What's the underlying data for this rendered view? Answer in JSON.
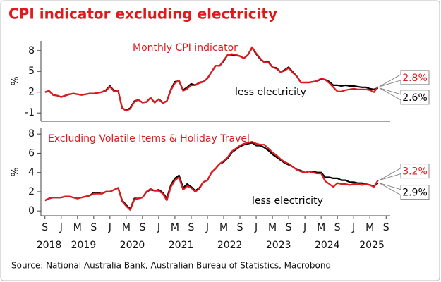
{
  "title": "CPI indicator excluding electricity",
  "source": "Source: National Australia Bank, Australian Bureau of Statistics, Macrobond",
  "chart_data": [
    {
      "type": "line",
      "x": [
        "2018-09",
        "2018-10",
        "2018-11",
        "2018-12",
        "2019-01",
        "2019-02",
        "2019-03",
        "2019-04",
        "2019-05",
        "2019-06",
        "2019-07",
        "2019-08",
        "2019-09",
        "2019-10",
        "2019-11",
        "2019-12",
        "2020-01",
        "2020-02",
        "2020-03",
        "2020-04",
        "2020-05",
        "2020-06",
        "2020-07",
        "2020-08",
        "2020-09",
        "2020-10",
        "2020-11",
        "2020-12",
        "2021-01",
        "2021-02",
        "2021-03",
        "2021-04",
        "2021-05",
        "2021-06",
        "2021-07",
        "2021-08",
        "2021-09",
        "2021-10",
        "2021-11",
        "2021-12",
        "2022-01",
        "2022-02",
        "2022-03",
        "2022-04",
        "2022-05",
        "2022-06",
        "2022-07",
        "2022-08",
        "2022-09",
        "2022-10",
        "2022-11",
        "2022-12",
        "2023-01",
        "2023-02",
        "2023-03",
        "2023-04",
        "2023-05",
        "2023-06",
        "2023-07",
        "2023-08",
        "2023-09",
        "2023-10",
        "2023-11",
        "2023-12",
        "2024-01",
        "2024-02",
        "2024-03",
        "2024-04",
        "2024-05",
        "2024-06",
        "2024-07",
        "2024-08",
        "2024-09",
        "2024-10",
        "2024-11",
        "2024-12",
        "2025-01",
        "2025-02",
        "2025-03",
        "2025-04",
        "2025-05",
        "2025-06",
        "2025-07"
      ],
      "xlim": [
        "2018-08",
        "2025-10"
      ],
      "ylabel": "%",
      "ylim": [
        -2.2,
        9.4
      ],
      "yticks": [
        -1,
        2,
        5,
        8
      ],
      "series": [
        {
          "name": "Monthly CPI indicator",
          "color": "#e0191e",
          "end_label": "2.8%",
          "values": [
            2.0,
            2.2,
            1.6,
            1.5,
            1.3,
            1.5,
            1.7,
            1.8,
            1.7,
            1.6,
            1.7,
            1.8,
            1.8,
            1.9,
            2.0,
            2.2,
            2.8,
            2.1,
            2.2,
            -0.3,
            -0.7,
            -0.4,
            0.6,
            0.9,
            0.5,
            0.6,
            1.2,
            0.5,
            1.0,
            0.4,
            0.7,
            2.3,
            3.3,
            3.7,
            2.2,
            2.5,
            3.0,
            3.0,
            3.3,
            3.5,
            4.0,
            4.9,
            5.8,
            5.8,
            6.6,
            7.4,
            7.5,
            7.4,
            7.2,
            6.9,
            7.4,
            8.5,
            7.6,
            6.9,
            6.3,
            6.3,
            5.6,
            5.4,
            4.9,
            5.1,
            5.5,
            4.8,
            4.3,
            3.4,
            3.4,
            3.4,
            3.5,
            3.6,
            4.0,
            3.8,
            3.3,
            2.7,
            2.1,
            2.1,
            2.3,
            2.4,
            2.5,
            2.4,
            2.4,
            2.4,
            2.3,
            2.0,
            2.8
          ]
        },
        {
          "name": "less electricity",
          "color": "#000000",
          "end_label": "2.6%",
          "values": [
            2.0,
            2.2,
            1.6,
            1.5,
            1.3,
            1.5,
            1.7,
            1.8,
            1.7,
            1.6,
            1.7,
            1.8,
            1.8,
            1.9,
            2.0,
            2.3,
            2.9,
            2.2,
            2.2,
            -0.3,
            -0.6,
            -0.3,
            0.7,
            0.9,
            0.5,
            0.6,
            1.2,
            0.5,
            1.0,
            0.5,
            0.7,
            2.4,
            3.5,
            3.6,
            2.3,
            2.7,
            3.2,
            3.0,
            3.4,
            3.5,
            4.0,
            4.9,
            5.8,
            5.8,
            6.5,
            7.4,
            7.4,
            7.3,
            7.2,
            6.9,
            7.4,
            8.4,
            7.5,
            6.8,
            6.3,
            6.4,
            5.6,
            5.5,
            4.9,
            5.2,
            5.6,
            4.9,
            4.3,
            3.4,
            3.4,
            3.4,
            3.5,
            3.6,
            3.9,
            3.8,
            3.5,
            3.0,
            3.0,
            2.9,
            3.0,
            2.9,
            2.9,
            2.8,
            2.7,
            2.7,
            2.5,
            2.4,
            2.6
          ]
        }
      ]
    },
    {
      "type": "line",
      "x": [
        "2018-09",
        "2018-10",
        "2018-11",
        "2018-12",
        "2019-01",
        "2019-02",
        "2019-03",
        "2019-04",
        "2019-05",
        "2019-06",
        "2019-07",
        "2019-08",
        "2019-09",
        "2019-10",
        "2019-11",
        "2019-12",
        "2020-01",
        "2020-02",
        "2020-03",
        "2020-04",
        "2020-05",
        "2020-06",
        "2020-07",
        "2020-08",
        "2020-09",
        "2020-10",
        "2020-11",
        "2020-12",
        "2021-01",
        "2021-02",
        "2021-03",
        "2021-04",
        "2021-05",
        "2021-06",
        "2021-07",
        "2021-08",
        "2021-09",
        "2021-10",
        "2021-11",
        "2021-12",
        "2022-01",
        "2022-02",
        "2022-03",
        "2022-04",
        "2022-05",
        "2022-06",
        "2022-07",
        "2022-08",
        "2022-09",
        "2022-10",
        "2022-11",
        "2022-12",
        "2023-01",
        "2023-02",
        "2023-03",
        "2023-04",
        "2023-05",
        "2023-06",
        "2023-07",
        "2023-08",
        "2023-09",
        "2023-10",
        "2023-11",
        "2023-12",
        "2024-01",
        "2024-02",
        "2024-03",
        "2024-04",
        "2024-05",
        "2024-06",
        "2024-07",
        "2024-08",
        "2024-09",
        "2024-10",
        "2024-11",
        "2024-12",
        "2025-01",
        "2025-02",
        "2025-03",
        "2025-04",
        "2025-05",
        "2025-06",
        "2025-07"
      ],
      "xlim": [
        "2018-08",
        "2025-10"
      ],
      "xticks": [
        {
          "value": "2018-09",
          "label": "S"
        },
        {
          "value": "2019-01",
          "label": "J"
        },
        {
          "value": "2019-05",
          "label": "M"
        },
        {
          "value": "2019-09",
          "label": "S"
        },
        {
          "value": "2020-01",
          "label": "J"
        },
        {
          "value": "2020-05",
          "label": "M"
        },
        {
          "value": "2020-09",
          "label": "S"
        },
        {
          "value": "2021-01",
          "label": "J"
        },
        {
          "value": "2021-05",
          "label": "M"
        },
        {
          "value": "2021-09",
          "label": "S"
        },
        {
          "value": "2022-01",
          "label": "J"
        },
        {
          "value": "2022-05",
          "label": "M"
        },
        {
          "value": "2022-09",
          "label": "S"
        },
        {
          "value": "2023-01",
          "label": "J"
        },
        {
          "value": "2023-05",
          "label": "M"
        },
        {
          "value": "2023-09",
          "label": "S"
        },
        {
          "value": "2024-01",
          "label": "J"
        },
        {
          "value": "2024-05",
          "label": "M"
        },
        {
          "value": "2024-09",
          "label": "S"
        },
        {
          "value": "2025-01",
          "label": "J"
        },
        {
          "value": "2025-05",
          "label": "M"
        },
        {
          "value": "2025-09",
          "label": "S"
        }
      ],
      "year_labels": [
        "2018",
        "2019",
        "2020",
        "2021",
        "2022",
        "2023",
        "2024",
        "2025"
      ],
      "ylabel": "%",
      "ylim": [
        -0.5,
        8.6
      ],
      "yticks": [
        0,
        2,
        4,
        6,
        8
      ],
      "series": [
        {
          "name": "Excluding Volatile Items & Holiday Travel",
          "color": "#e0191e",
          "end_label": "3.2%",
          "values": [
            1.1,
            1.3,
            1.4,
            1.4,
            1.4,
            1.5,
            1.5,
            1.4,
            1.3,
            1.4,
            1.5,
            1.6,
            1.8,
            1.8,
            1.8,
            2.0,
            2.0,
            2.2,
            2.4,
            1.0,
            0.5,
            0.1,
            1.2,
            1.3,
            1.4,
            2.0,
            2.3,
            2.1,
            2.1,
            1.8,
            1.1,
            2.5,
            3.2,
            3.5,
            2.2,
            2.6,
            2.4,
            2.0,
            2.3,
            3.0,
            3.2,
            4.0,
            4.4,
            4.9,
            5.2,
            5.6,
            6.2,
            6.5,
            6.8,
            7.0,
            7.1,
            7.2,
            7.0,
            6.9,
            6.9,
            6.5,
            6.1,
            5.8,
            5.4,
            5.1,
            4.9,
            4.6,
            4.3,
            4.1,
            4.0,
            4.1,
            4.0,
            3.9,
            3.9,
            3.1,
            2.8,
            2.5,
            2.9,
            2.8,
            2.8,
            2.7,
            2.8,
            2.8,
            2.7,
            2.8,
            2.7,
            2.5,
            3.2
          ]
        },
        {
          "name": "less electricity",
          "color": "#000000",
          "end_label": "2.9%",
          "values": [
            1.1,
            1.3,
            1.4,
            1.4,
            1.4,
            1.5,
            1.5,
            1.4,
            1.3,
            1.4,
            1.5,
            1.6,
            1.9,
            1.9,
            1.8,
            2.0,
            2.0,
            2.2,
            2.4,
            1.1,
            0.6,
            0.2,
            1.3,
            1.3,
            1.4,
            2.0,
            2.2,
            2.1,
            2.2,
            1.9,
            1.3,
            2.7,
            3.4,
            3.7,
            2.4,
            2.8,
            2.5,
            2.1,
            2.4,
            3.0,
            3.2,
            4.0,
            4.4,
            4.9,
            5.1,
            5.5,
            6.1,
            6.4,
            6.7,
            6.9,
            7.0,
            7.1,
            6.8,
            6.8,
            6.6,
            6.3,
            5.9,
            5.6,
            5.3,
            5.0,
            4.8,
            4.6,
            4.3,
            4.2,
            4.0,
            4.1,
            4.1,
            4.0,
            4.0,
            3.5,
            3.5,
            3.4,
            3.4,
            3.2,
            3.2,
            3.0,
            3.0,
            2.9,
            2.9,
            2.8,
            2.7,
            2.6,
            2.9
          ]
        }
      ]
    }
  ]
}
